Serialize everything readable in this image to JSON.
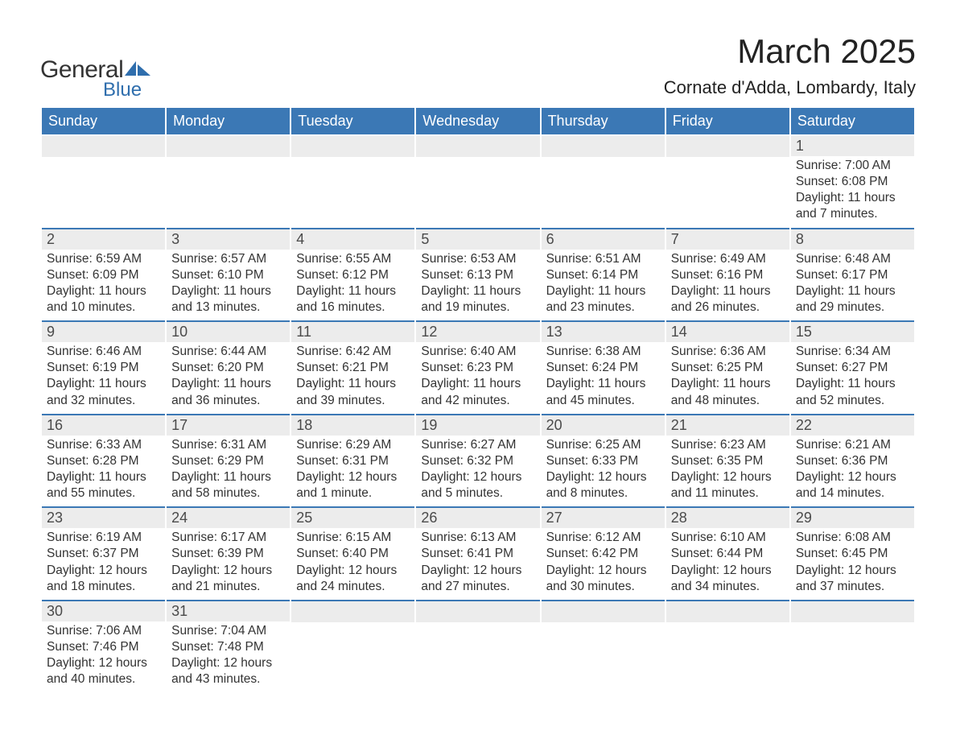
{
  "logo": {
    "text_general": "General",
    "text_blue": "Blue",
    "icon_color": "#2f6ead"
  },
  "title": "March 2025",
  "location": "Cornate d'Adda, Lombardy, Italy",
  "colors": {
    "header_bg": "#3b78b5",
    "header_text": "#ffffff",
    "daynum_bg": "#ececec",
    "daynum_text": "#4a4a4a",
    "body_text": "#333333",
    "row_border": "#3b78b5",
    "page_bg": "#ffffff"
  },
  "weekdays": [
    "Sunday",
    "Monday",
    "Tuesday",
    "Wednesday",
    "Thursday",
    "Friday",
    "Saturday"
  ],
  "labels": {
    "sunrise": "Sunrise:",
    "sunset": "Sunset:",
    "daylight": "Daylight:"
  },
  "weeks": [
    [
      null,
      null,
      null,
      null,
      null,
      null,
      {
        "n": "1",
        "sunrise": "7:00 AM",
        "sunset": "6:08 PM",
        "daylight1": "11 hours",
        "daylight2": "and 7 minutes."
      }
    ],
    [
      {
        "n": "2",
        "sunrise": "6:59 AM",
        "sunset": "6:09 PM",
        "daylight1": "11 hours",
        "daylight2": "and 10 minutes."
      },
      {
        "n": "3",
        "sunrise": "6:57 AM",
        "sunset": "6:10 PM",
        "daylight1": "11 hours",
        "daylight2": "and 13 minutes."
      },
      {
        "n": "4",
        "sunrise": "6:55 AM",
        "sunset": "6:12 PM",
        "daylight1": "11 hours",
        "daylight2": "and 16 minutes."
      },
      {
        "n": "5",
        "sunrise": "6:53 AM",
        "sunset": "6:13 PM",
        "daylight1": "11 hours",
        "daylight2": "and 19 minutes."
      },
      {
        "n": "6",
        "sunrise": "6:51 AM",
        "sunset": "6:14 PM",
        "daylight1": "11 hours",
        "daylight2": "and 23 minutes."
      },
      {
        "n": "7",
        "sunrise": "6:49 AM",
        "sunset": "6:16 PM",
        "daylight1": "11 hours",
        "daylight2": "and 26 minutes."
      },
      {
        "n": "8",
        "sunrise": "6:48 AM",
        "sunset": "6:17 PM",
        "daylight1": "11 hours",
        "daylight2": "and 29 minutes."
      }
    ],
    [
      {
        "n": "9",
        "sunrise": "6:46 AM",
        "sunset": "6:19 PM",
        "daylight1": "11 hours",
        "daylight2": "and 32 minutes."
      },
      {
        "n": "10",
        "sunrise": "6:44 AM",
        "sunset": "6:20 PM",
        "daylight1": "11 hours",
        "daylight2": "and 36 minutes."
      },
      {
        "n": "11",
        "sunrise": "6:42 AM",
        "sunset": "6:21 PM",
        "daylight1": "11 hours",
        "daylight2": "and 39 minutes."
      },
      {
        "n": "12",
        "sunrise": "6:40 AM",
        "sunset": "6:23 PM",
        "daylight1": "11 hours",
        "daylight2": "and 42 minutes."
      },
      {
        "n": "13",
        "sunrise": "6:38 AM",
        "sunset": "6:24 PM",
        "daylight1": "11 hours",
        "daylight2": "and 45 minutes."
      },
      {
        "n": "14",
        "sunrise": "6:36 AM",
        "sunset": "6:25 PM",
        "daylight1": "11 hours",
        "daylight2": "and 48 minutes."
      },
      {
        "n": "15",
        "sunrise": "6:34 AM",
        "sunset": "6:27 PM",
        "daylight1": "11 hours",
        "daylight2": "and 52 minutes."
      }
    ],
    [
      {
        "n": "16",
        "sunrise": "6:33 AM",
        "sunset": "6:28 PM",
        "daylight1": "11 hours",
        "daylight2": "and 55 minutes."
      },
      {
        "n": "17",
        "sunrise": "6:31 AM",
        "sunset": "6:29 PM",
        "daylight1": "11 hours",
        "daylight2": "and 58 minutes."
      },
      {
        "n": "18",
        "sunrise": "6:29 AM",
        "sunset": "6:31 PM",
        "daylight1": "12 hours",
        "daylight2": "and 1 minute."
      },
      {
        "n": "19",
        "sunrise": "6:27 AM",
        "sunset": "6:32 PM",
        "daylight1": "12 hours",
        "daylight2": "and 5 minutes."
      },
      {
        "n": "20",
        "sunrise": "6:25 AM",
        "sunset": "6:33 PM",
        "daylight1": "12 hours",
        "daylight2": "and 8 minutes."
      },
      {
        "n": "21",
        "sunrise": "6:23 AM",
        "sunset": "6:35 PM",
        "daylight1": "12 hours",
        "daylight2": "and 11 minutes."
      },
      {
        "n": "22",
        "sunrise": "6:21 AM",
        "sunset": "6:36 PM",
        "daylight1": "12 hours",
        "daylight2": "and 14 minutes."
      }
    ],
    [
      {
        "n": "23",
        "sunrise": "6:19 AM",
        "sunset": "6:37 PM",
        "daylight1": "12 hours",
        "daylight2": "and 18 minutes."
      },
      {
        "n": "24",
        "sunrise": "6:17 AM",
        "sunset": "6:39 PM",
        "daylight1": "12 hours",
        "daylight2": "and 21 minutes."
      },
      {
        "n": "25",
        "sunrise": "6:15 AM",
        "sunset": "6:40 PM",
        "daylight1": "12 hours",
        "daylight2": "and 24 minutes."
      },
      {
        "n": "26",
        "sunrise": "6:13 AM",
        "sunset": "6:41 PM",
        "daylight1": "12 hours",
        "daylight2": "and 27 minutes."
      },
      {
        "n": "27",
        "sunrise": "6:12 AM",
        "sunset": "6:42 PM",
        "daylight1": "12 hours",
        "daylight2": "and 30 minutes."
      },
      {
        "n": "28",
        "sunrise": "6:10 AM",
        "sunset": "6:44 PM",
        "daylight1": "12 hours",
        "daylight2": "and 34 minutes."
      },
      {
        "n": "29",
        "sunrise": "6:08 AM",
        "sunset": "6:45 PM",
        "daylight1": "12 hours",
        "daylight2": "and 37 minutes."
      }
    ],
    [
      {
        "n": "30",
        "sunrise": "7:06 AM",
        "sunset": "7:46 PM",
        "daylight1": "12 hours",
        "daylight2": "and 40 minutes."
      },
      {
        "n": "31",
        "sunrise": "7:04 AM",
        "sunset": "7:48 PM",
        "daylight1": "12 hours",
        "daylight2": "and 43 minutes."
      },
      null,
      null,
      null,
      null,
      null
    ]
  ]
}
